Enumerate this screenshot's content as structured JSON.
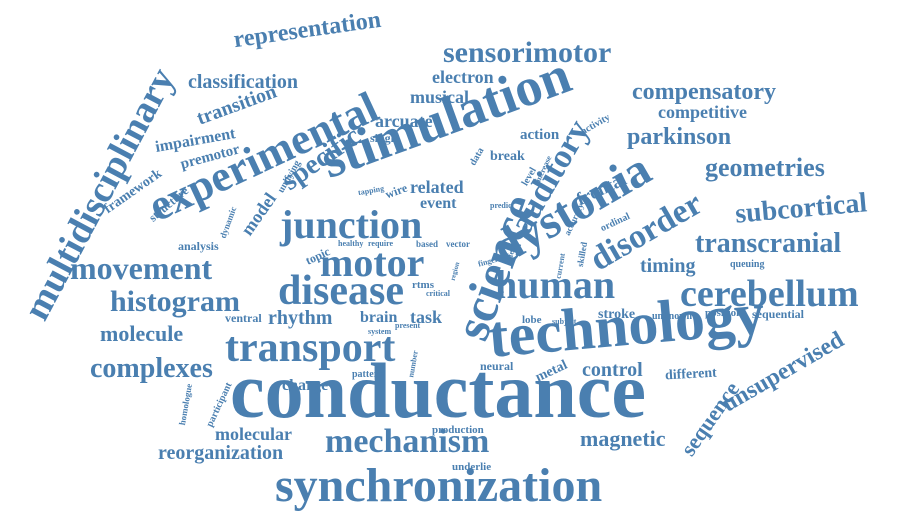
{
  "palette": {
    "word": "#4a7fb0",
    "background": "#ffffff"
  },
  "words": [
    "conductance",
    "synchronization",
    "technology",
    "stimulation",
    "science",
    "multidisciplinary",
    "experimental",
    "dystonia",
    "human",
    "cerebellum",
    "mechanism",
    "transport",
    "disease",
    "junction",
    "motor",
    "auditory",
    "movement",
    "disorder",
    "histogram",
    "sensorimotor",
    "subcortical",
    "transcranial",
    "compensatory",
    "geometries",
    "complexes",
    "specific",
    "representation",
    "unsupervised",
    "sequence",
    "parkinson",
    "classification",
    "magnetic",
    "reorganization",
    "transition",
    "control",
    "molecule",
    "molecular",
    "rhythm",
    "electron",
    "competitive",
    "timing",
    "frontal",
    "musical",
    "arcuate",
    "related",
    "charge",
    "event",
    "model",
    "brain",
    "task",
    "impairment",
    "premotor",
    "action",
    "break",
    "framework",
    "structure",
    "analysis",
    "stroke",
    "position",
    "sequential",
    "different",
    "metal",
    "neural",
    "production",
    "underlie",
    "pattern",
    "ventral",
    "single",
    "activity",
    "unknown",
    "lobe",
    "subject",
    "topic",
    "wire",
    "data",
    "level",
    "dynamic",
    "unifying",
    "tapping",
    "predict",
    "increase",
    "accuracy",
    "ordinal",
    "queuing",
    "skilled",
    "current",
    "effect",
    "finger",
    "rtms",
    "system",
    "present",
    "healthy",
    "require",
    "based",
    "vector",
    "number",
    "participant",
    "homologue",
    "critical",
    "region"
  ]
}
